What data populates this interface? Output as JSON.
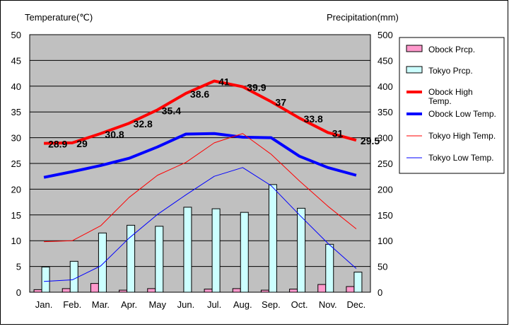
{
  "chart_data": {
    "type": "bar+line",
    "categories": [
      "Jan.",
      "Feb.",
      "Mar.",
      "Apr.",
      "May",
      "Jun.",
      "Jul.",
      "Aug.",
      "Sep.",
      "Oct.",
      "Nov.",
      "Dec."
    ],
    "y_left": {
      "label": "Temperature(℃)",
      "range": [
        0,
        50
      ],
      "ticks": [
        0,
        5,
        10,
        15,
        20,
        25,
        30,
        35,
        40,
        45,
        50
      ]
    },
    "y_right": {
      "label": "Precipitation(mm)",
      "range": [
        0,
        500
      ],
      "ticks": [
        0,
        50,
        100,
        150,
        200,
        250,
        300,
        350,
        400,
        450,
        500
      ]
    },
    "bar_series": [
      {
        "name": "Obock Prcp.",
        "color": "#ff99cc",
        "axis": "right",
        "values": [
          5,
          7,
          17,
          4,
          7,
          0,
          6,
          7,
          4,
          6,
          15,
          11
        ]
      },
      {
        "name": "Tokyo Prcp.",
        "color": "#ccffff",
        "axis": "right",
        "values": [
          49,
          60,
          115,
          130,
          128,
          165,
          162,
          155,
          209,
          163,
          93,
          39
        ]
      }
    ],
    "line_series": [
      {
        "name": "Obock High Temp.",
        "color": "#ff0000",
        "width": 4,
        "axis": "left",
        "values": [
          28.9,
          29,
          30.8,
          32.8,
          35.4,
          38.6,
          41,
          39.9,
          37,
          33.8,
          31,
          29.5
        ],
        "labels": [
          "28.9",
          "29",
          "30.8",
          "32.8",
          "35.4",
          "38.6",
          "41",
          "39.9",
          "37",
          "33.8",
          "31",
          "29.5"
        ]
      },
      {
        "name": "Obock Low Temp.",
        "color": "#0000ff",
        "width": 4,
        "axis": "left",
        "values": [
          22.3,
          23.4,
          24.6,
          26.0,
          28.2,
          30.7,
          30.8,
          30.1,
          30.0,
          26.4,
          24.2,
          22.7
        ]
      },
      {
        "name": "Tokyo High Temp.",
        "color": "#ff0000",
        "width": 1,
        "axis": "left",
        "values": [
          9.8,
          10.0,
          12.9,
          18.4,
          22.7,
          25.2,
          29.0,
          30.8,
          26.8,
          21.6,
          16.7,
          12.3
        ]
      },
      {
        "name": "Tokyo Low Temp.",
        "color": "#0000ff",
        "width": 1,
        "axis": "left",
        "values": [
          2.1,
          2.4,
          5.1,
          10.5,
          15.1,
          18.9,
          22.5,
          24.2,
          20.7,
          15.0,
          9.5,
          4.6
        ]
      }
    ],
    "legend_position": "right",
    "plot_background": "#c0c0c0",
    "grid": "horizontal"
  }
}
